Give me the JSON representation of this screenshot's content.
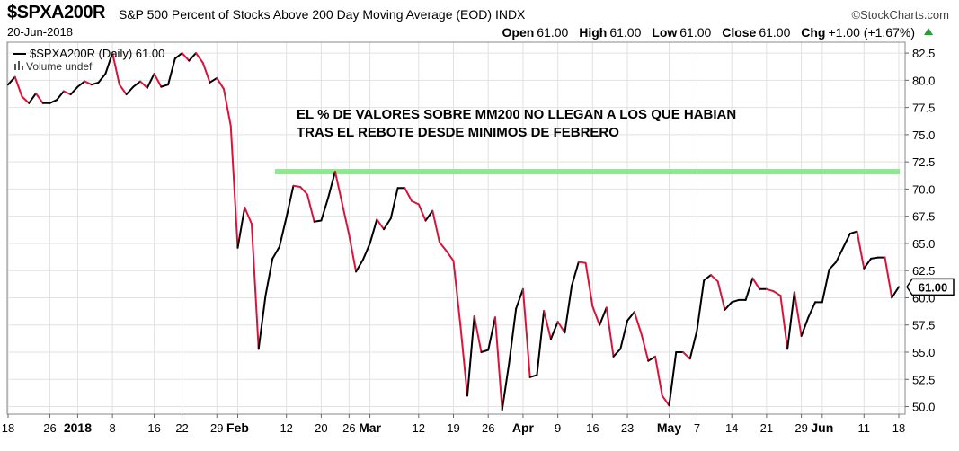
{
  "header": {
    "symbol": "$SPXA200R",
    "description": "S&P 500 Percent of Stocks Above 200 Day Moving Average (EOD)",
    "exchange": "INDX",
    "credit": "©StockCharts.com",
    "date": "20-Jun-2018",
    "open_label": "Open",
    "open": "61.00",
    "high_label": "High",
    "high": "61.00",
    "low_label": "Low",
    "low": "61.00",
    "close_label": "Close",
    "close": "61.00",
    "chg_label": "Chg",
    "chg": "+1.00 (+1.67%)"
  },
  "legend": {
    "series": "$SPXA200R (Daily) 61.00",
    "volume": "Volume undef"
  },
  "annotation": {
    "line1": "EL % DE VALORES SOBRE MM200 NO LLEGAN A LOS QUE HABIAN",
    "line2": "TRAS EL REBOTE DESDE MINIMOS DE FEBRERO",
    "level_color": "#8fe88f",
    "level_value": 71.6
  },
  "colors": {
    "up": "#000000",
    "down": "#d9143a",
    "last_badge_border": "#000000"
  },
  "chart_data": {
    "type": "line",
    "title": "",
    "xlabel": "",
    "ylabel": "",
    "ylim": [
      49.3,
      83.5
    ],
    "y_ticks": [
      50.0,
      52.5,
      55.0,
      57.5,
      60.0,
      62.5,
      65.0,
      67.5,
      70.0,
      72.5,
      75.0,
      77.5,
      80.0,
      82.5
    ],
    "y_tick_labels": [
      "50.0",
      "52.5",
      "55.0",
      "57.5",
      "60.0",
      "62.5",
      "65.0",
      "67.5",
      "70.0",
      "72.5",
      "75.0",
      "77.5",
      "80.0",
      "82.5"
    ],
    "last_value_label": "61.00",
    "grid": true,
    "x_labels": [
      {
        "label": "18",
        "day": 0,
        "bold": false
      },
      {
        "label": "26",
        "day": 6,
        "bold": false
      },
      {
        "label": "2018",
        "day": 10,
        "bold": true
      },
      {
        "label": "8",
        "day": 15,
        "bold": false
      },
      {
        "label": "16",
        "day": 21,
        "bold": false
      },
      {
        "label": "22",
        "day": 25,
        "bold": false
      },
      {
        "label": "29",
        "day": 30,
        "bold": false
      },
      {
        "label": "Feb",
        "day": 33,
        "bold": true
      },
      {
        "label": "12",
        "day": 40,
        "bold": false
      },
      {
        "label": "20",
        "day": 45,
        "bold": false
      },
      {
        "label": "26",
        "day": 49,
        "bold": false
      },
      {
        "label": "Mar",
        "day": 52,
        "bold": true
      },
      {
        "label": "12",
        "day": 59,
        "bold": false
      },
      {
        "label": "19",
        "day": 64,
        "bold": false
      },
      {
        "label": "26",
        "day": 69,
        "bold": false
      },
      {
        "label": "Apr",
        "day": 74,
        "bold": true
      },
      {
        "label": "9",
        "day": 79,
        "bold": false
      },
      {
        "label": "16",
        "day": 84,
        "bold": false
      },
      {
        "label": "23",
        "day": 89,
        "bold": false
      },
      {
        "label": "May",
        "day": 95,
        "bold": true
      },
      {
        "label": "7",
        "day": 99,
        "bold": false
      },
      {
        "label": "14",
        "day": 104,
        "bold": false
      },
      {
        "label": "21",
        "day": 109,
        "bold": false
      },
      {
        "label": "29",
        "day": 114,
        "bold": false
      },
      {
        "label": "Jun",
        "day": 117,
        "bold": true
      },
      {
        "label": "11",
        "day": 123,
        "bold": false
      },
      {
        "label": "18",
        "day": 128,
        "bold": false
      }
    ],
    "series": [
      {
        "values": [
          79.6,
          80.3,
          78.5,
          77.9,
          78.8,
          77.9,
          77.9,
          78.2,
          79.0,
          78.7,
          79.4,
          79.9,
          79.6,
          79.8,
          80.6,
          82.5,
          79.6,
          78.7,
          79.4,
          79.9,
          79.3,
          80.6,
          79.4,
          79.6,
          82.0,
          82.5,
          81.8,
          82.5,
          81.6,
          79.8,
          80.2,
          79.2,
          75.8,
          64.6,
          68.3,
          66.8,
          55.3,
          60.2,
          63.6,
          64.7,
          67.4,
          70.3,
          70.2,
          69.5,
          67.0,
          67.1,
          69.2,
          71.6,
          68.7,
          65.8,
          62.4,
          63.5,
          65.0,
          67.2,
          66.3,
          67.3,
          70.1,
          70.1,
          68.9,
          68.6,
          67.1,
          68.0,
          65.1,
          64.3,
          63.4,
          57.5,
          51.0,
          58.3,
          55.0,
          55.2,
          58.2,
          49.7,
          54.0,
          59.0,
          60.8,
          52.7,
          52.9,
          58.8,
          56.2,
          57.8,
          56.8,
          61.1,
          63.3,
          63.2,
          59.2,
          57.5,
          59.1,
          54.6,
          55.3,
          57.9,
          58.7,
          56.7,
          54.2,
          54.6,
          51.0,
          50.1,
          55.0,
          55.0,
          54.4,
          57.0,
          61.6,
          62.1,
          61.5,
          58.9,
          59.6,
          59.8,
          59.8,
          61.8,
          60.8,
          60.8,
          60.6,
          60.2,
          55.3,
          60.5,
          56.5,
          58.2,
          59.6,
          59.6,
          62.6,
          63.3,
          64.6,
          65.9,
          66.1,
          62.7,
          63.6,
          63.7,
          63.7,
          60.0,
          61.0
        ]
      }
    ]
  }
}
